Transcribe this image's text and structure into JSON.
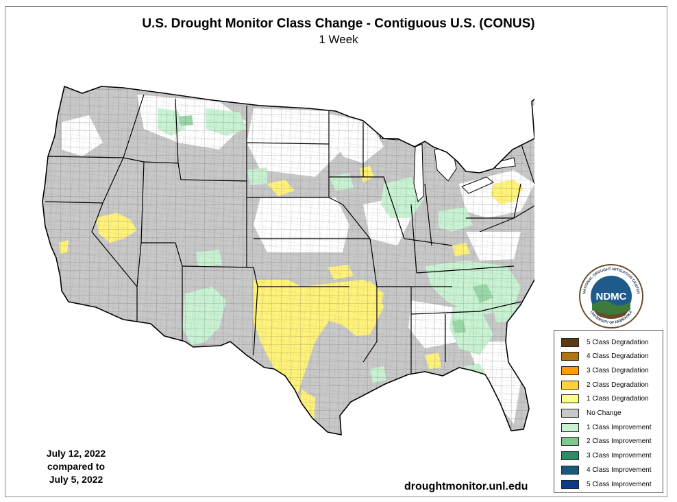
{
  "title": "U.S. Drought Monitor Class Change - Contiguous U.S. (CONUS)",
  "subtitle": "1 Week",
  "date_block": {
    "line1": "July 12, 2022",
    "line2": "compared to",
    "line3": "July 5, 2022"
  },
  "source": "droughtmonitor.unl.edu",
  "logo": {
    "center_text": "NDMC",
    "ring_top": "NATIONAL DROUGHT MITIGATION CENTER",
    "ring_bottom": "UNIVERSITY OF NEBRASKA"
  },
  "legend": [
    {
      "label": "5 Class Degradation",
      "color": "#5c3a12"
    },
    {
      "label": "4 Class Degradation",
      "color": "#b5730e"
    },
    {
      "label": "3 Class Degradation",
      "color": "#ff9c00"
    },
    {
      "label": "2 Class Degradation",
      "color": "#ffd23c"
    },
    {
      "label": "1 Class Degradation",
      "color": "#ffff82"
    },
    {
      "label": "No Change",
      "color": "#c8c8c8"
    },
    {
      "label": "1 Class Improvement",
      "color": "#c8f2d2"
    },
    {
      "label": "2 Class Improvement",
      "color": "#7ec88c"
    },
    {
      "label": "3 Class Improvement",
      "color": "#2e8c64"
    },
    {
      "label": "4 Class Improvement",
      "color": "#1a5a78"
    },
    {
      "label": "5 Class Improvement",
      "color": "#0a3c8c"
    }
  ],
  "colors": {
    "no_change": "#c8c8c8",
    "degradation_1": "#fff27a",
    "improvement_1": "#c8f2d2",
    "improvement_2": "#9bd8a8",
    "no_data": "#ffffff",
    "state_border": "#000000",
    "county_border": "#555555",
    "logo_blue": "#1f5a8c",
    "logo_green": "#3e7a3a",
    "logo_brown": "#6a4a2a"
  }
}
